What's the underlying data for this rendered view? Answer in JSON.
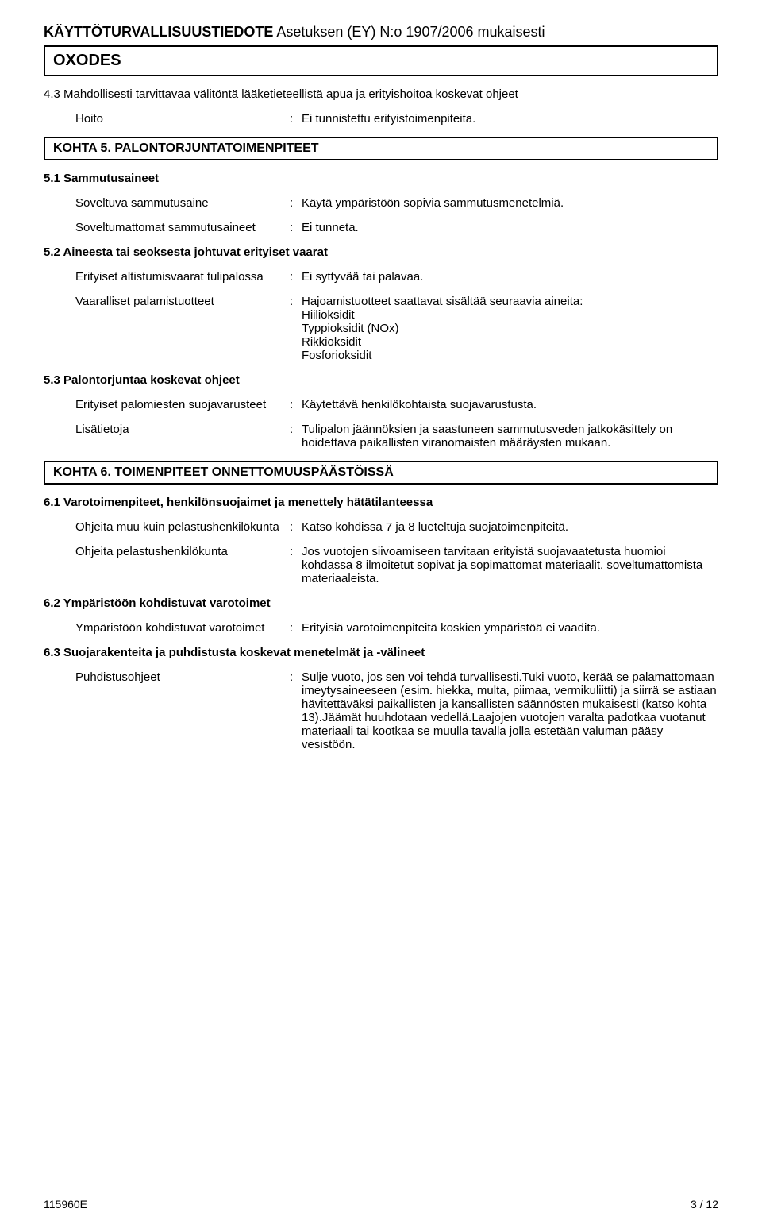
{
  "header": {
    "title_bold": "KÄYTTÖTURVALLISUUSTIEDOTE",
    "title_rest": "Asetuksen (EY) N:o 1907/2006 mukaisesti",
    "product_name": "OXODES"
  },
  "s43": {
    "heading": "4.3 Mahdollisesti tarvittavaa välitöntä lääketieteellistä apua ja erityishoitoa koskevat ohjeet",
    "hoito_label": "Hoito",
    "hoito_value": "Ei tunnistettu erityistoimenpiteita."
  },
  "kohta5": {
    "heading": "KOHTA 5. PALONTORJUNTATOIMENPITEET"
  },
  "s51": {
    "heading": "5.1 Sammutusaineet",
    "suitable_label": "Soveltuva sammutusaine",
    "suitable_value": "Käytä ympäristöön sopivia sammutusmenetelmiä.",
    "unsuitable_label": "Soveltumattomat sammutusaineet",
    "unsuitable_value": "Ei tunneta."
  },
  "s52": {
    "heading": "5.2 Aineesta tai seoksesta johtuvat erityiset vaarat",
    "exposure_label": "Erityiset altistumisvaarat tulipalossa",
    "exposure_value": "Ei syttyvää tai palavaa.",
    "haz_label": "Vaaralliset palamistuotteet",
    "haz_intro": "Hajoamistuotteet saattavat sisältää seuraavia aineita:",
    "haz_items": [
      "Hiilioksidit",
      "Typpioksidit (NOx)",
      "Rikkioksidit",
      "Fosforioksidit"
    ]
  },
  "s53": {
    "heading": "5.3 Palontorjuntaa koskevat ohjeet",
    "ppe_label": "Erityiset palomiesten suojavarusteet",
    "ppe_value": "Käytettävä henkilökohtaista suojavarustusta.",
    "more_label": "Lisätietoja",
    "more_value": "Tulipalon jäännöksien ja saastuneen sammutusveden jatkokäsittely on hoidettava paikallisten viranomaisten määräysten mukaan."
  },
  "kohta6": {
    "heading": "KOHTA 6. TOIMENPITEET ONNETTOMUUSPÄÄSTÖISSÄ"
  },
  "s61": {
    "heading": "6.1 Varotoimenpiteet, henkilönsuojaimet ja menettely hätätilanteessa",
    "non_label": "Ohjeita muu kuin pelastushenkilökunta",
    "non_value": "Katso kohdissa 7 ja 8 lueteltuja suojatoimenpiteitä.",
    "resp_label": "Ohjeita pelastushenkilökunta",
    "resp_value": "Jos vuotojen siivoamiseen tarvitaan erityistä suojavaatetusta huomioi kohdassa 8 ilmoitetut sopivat ja sopimattomat materiaalit. soveltumattomista materiaaleista."
  },
  "s62": {
    "heading": "6.2 Ympäristöön kohdistuvat varotoimet",
    "env_label": "Ympäristöön kohdistuvat varotoimet",
    "env_value": "Erityisiä varotoimenpiteitä koskien ympäristöä ei vaadita."
  },
  "s63": {
    "heading": "6.3 Suojarakenteita ja puhdistusta koskevat menetelmät ja -välineet",
    "clean_label": "Puhdistusohjeet",
    "clean_value": "Sulje vuoto, jos sen voi tehdä turvallisesti.Tuki vuoto, kerää se palamattomaan imeytysaineeseen (esim. hiekka, multa, piimaa, vermikuliitti) ja siirrä se astiaan hävitettäväksi paikallisten ja kansallisten säännösten mukaisesti (katso kohta 13).Jäämät huuhdotaan vedellä.Laajojen vuotojen varalta padotkaa vuotanut materiaali tai kootkaa se muulla tavalla jolla estetään valuman pääsy vesistöön."
  },
  "footer": {
    "doc_id": "115960E",
    "page": "3 / 12"
  }
}
